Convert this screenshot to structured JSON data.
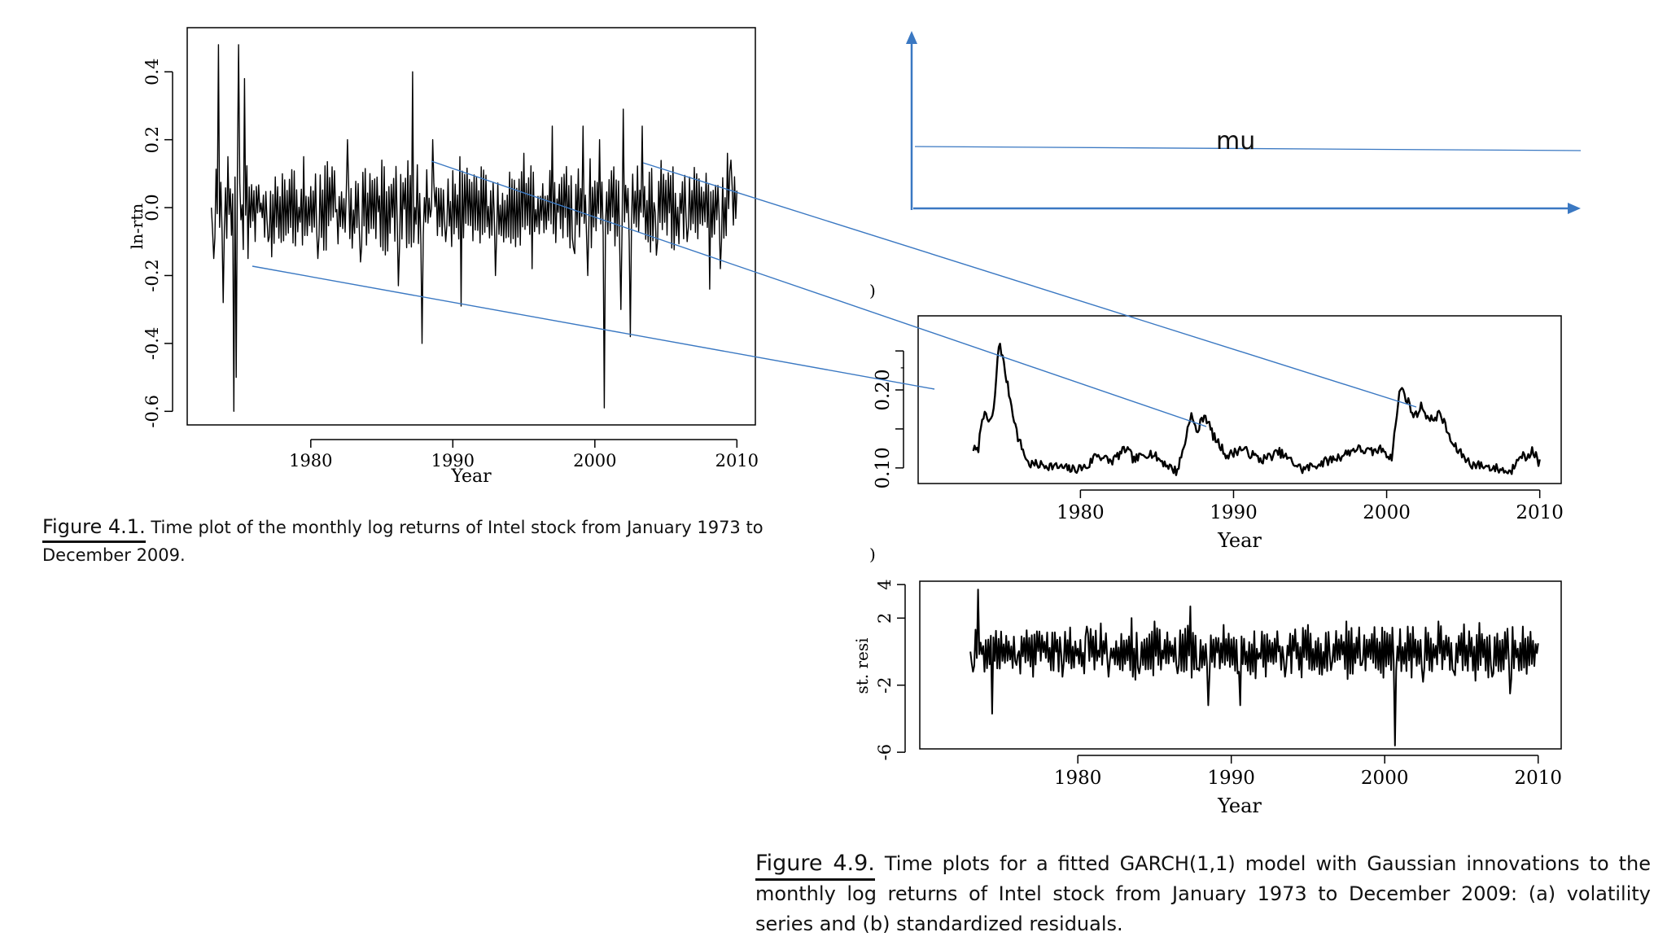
{
  "annotation": {
    "mu_label": "mu",
    "stray_marks": [
      ")",
      ")",
      "-"
    ]
  },
  "captions": {
    "fig41_label": "Figure 4.1.",
    "fig41_text": " Time plot of the monthly log returns of Intel stock from January 1973 to December 2009.",
    "fig49_label": "Figure 4.9.",
    "fig49_text": " Time plots for a fitted GARCH(1,1) model with Gaussian innovations to the monthly log returns of Intel stock from January 1973 to December 2009: (a) volatility series and (b) standardized residuals."
  },
  "colors": {
    "annotation": "#3a78c2",
    "line": "#000000"
  },
  "chart_data": [
    {
      "id": "log_returns",
      "type": "line",
      "title": "",
      "xlabel": "Year",
      "ylabel": "ln-rtn",
      "xlim": [
        1971.3,
        2011.3
      ],
      "ylim": [
        -0.64,
        0.53
      ],
      "xticks": [
        1980,
        1990,
        2000,
        2010
      ],
      "yticks": [
        -0.6,
        -0.4,
        -0.2,
        0.0,
        0.2,
        0.4
      ],
      "ytick_labels": [
        "-0.6",
        "-0.4",
        "-0.2",
        "0.0",
        "0.2",
        "0.4"
      ],
      "series": [
        {
          "name": "ln-rtn",
          "x_start": 1973.0,
          "x_end": 2010.0,
          "key_points": [
            [
              1973.0,
              0.0
            ],
            [
              1973.15,
              -0.15
            ],
            [
              1973.5,
              0.48
            ],
            [
              1973.85,
              -0.28
            ],
            [
              1974.2,
              0.15
            ],
            [
              1974.6,
              -0.6
            ],
            [
              1974.75,
              -0.5
            ],
            [
              1974.95,
              0.48
            ],
            [
              1975.3,
              0.38
            ],
            [
              1975.6,
              -0.15
            ],
            [
              1976.0,
              0.05
            ],
            [
              1977.0,
              -0.1
            ],
            [
              1978.0,
              0.1
            ],
            [
              1979.5,
              0.15
            ],
            [
              1980.5,
              -0.15
            ],
            [
              1981.5,
              0.12
            ],
            [
              1982.6,
              0.2
            ],
            [
              1983.5,
              -0.16
            ],
            [
              1985.0,
              0.14
            ],
            [
              1986.2,
              -0.23
            ],
            [
              1987.2,
              0.4
            ],
            [
              1987.8,
              -0.4
            ],
            [
              1988.6,
              0.2
            ],
            [
              1989.5,
              -0.1
            ],
            [
              1990.5,
              0.15
            ],
            [
              1990.6,
              -0.29
            ],
            [
              1992.0,
              0.12
            ],
            [
              1993.0,
              -0.2
            ],
            [
              1995.0,
              0.16
            ],
            [
              1995.6,
              -0.18
            ],
            [
              1997.0,
              0.24
            ],
            [
              1998.5,
              -0.12
            ],
            [
              1999.2,
              0.24
            ],
            [
              1999.5,
              -0.2
            ],
            [
              2000.3,
              0.2
            ],
            [
              2000.7,
              -0.59
            ],
            [
              2001.3,
              0.12
            ],
            [
              2001.8,
              -0.3
            ],
            [
              2002.0,
              0.29
            ],
            [
              2002.5,
              -0.38
            ],
            [
              2003.3,
              0.24
            ],
            [
              2004.3,
              -0.14
            ],
            [
              2005.5,
              0.12
            ],
            [
              2006.5,
              -0.1
            ],
            [
              2007.5,
              0.06
            ],
            [
              2008.1,
              -0.24
            ],
            [
              2008.8,
              -0.18
            ],
            [
              2009.3,
              0.16
            ],
            [
              2009.6,
              0.14
            ],
            [
              2010.0,
              0.05
            ]
          ]
        }
      ]
    },
    {
      "id": "volatility",
      "type": "line",
      "title": "",
      "xlabel": "Year",
      "ylabel": "",
      "xlim": [
        1969.4,
        2011.4
      ],
      "ylim": [
        0.08,
        0.295
      ],
      "xticks": [
        1980,
        1990,
        2000,
        2010
      ],
      "yticks": [
        0.1,
        0.15,
        0.2,
        0.25
      ],
      "ytick_labels": [
        "0.10",
        "",
        "0.20",
        ""
      ],
      "series": [
        {
          "name": "volatility",
          "x_start": 1973.0,
          "x_end": 2010.0,
          "key_points": [
            [
              1973.0,
              0.125
            ],
            [
              1973.3,
              0.12
            ],
            [
              1973.6,
              0.17
            ],
            [
              1974.0,
              0.16
            ],
            [
              1974.3,
              0.165
            ],
            [
              1974.7,
              0.265
            ],
            [
              1975.2,
              0.21
            ],
            [
              1975.9,
              0.14
            ],
            [
              1976.6,
              0.105
            ],
            [
              1978.0,
              0.103
            ],
            [
              1979.5,
              0.098
            ],
            [
              1980.5,
              0.102
            ],
            [
              1981.0,
              0.118
            ],
            [
              1982.0,
              0.108
            ],
            [
              1983.0,
              0.125
            ],
            [
              1983.5,
              0.11
            ],
            [
              1984.5,
              0.12
            ],
            [
              1986.3,
              0.095
            ],
            [
              1986.8,
              0.13
            ],
            [
              1987.2,
              0.17
            ],
            [
              1987.6,
              0.145
            ],
            [
              1988.1,
              0.17
            ],
            [
              1988.7,
              0.14
            ],
            [
              1989.6,
              0.115
            ],
            [
              1990.5,
              0.125
            ],
            [
              1991.8,
              0.11
            ],
            [
              1993.0,
              0.12
            ],
            [
              1994.5,
              0.098
            ],
            [
              1996.0,
              0.108
            ],
            [
              1997.0,
              0.115
            ],
            [
              1998.0,
              0.125
            ],
            [
              1999.0,
              0.12
            ],
            [
              1999.8,
              0.125
            ],
            [
              2000.3,
              0.11
            ],
            [
              2000.9,
              0.205
            ],
            [
              2001.4,
              0.185
            ],
            [
              2001.8,
              0.165
            ],
            [
              2002.3,
              0.18
            ],
            [
              2002.8,
              0.16
            ],
            [
              2003.5,
              0.17
            ],
            [
              2004.3,
              0.13
            ],
            [
              2005.5,
              0.105
            ],
            [
              2006.5,
              0.102
            ],
            [
              2007.5,
              0.098
            ],
            [
              2008.1,
              0.094
            ],
            [
              2008.7,
              0.12
            ],
            [
              2009.2,
              0.11
            ],
            [
              2009.5,
              0.125
            ],
            [
              2010.0,
              0.105
            ]
          ]
        }
      ]
    },
    {
      "id": "std_residuals",
      "type": "line",
      "title": "",
      "xlabel": "Year",
      "ylabel": "st. resi",
      "xlim": [
        1969.7,
        2011.5
      ],
      "ylim": [
        -5.8,
        4.2
      ],
      "xticks": [
        1980,
        1990,
        2000,
        2010
      ],
      "yticks": [
        -6,
        -2,
        2,
        4
      ],
      "ytick_labels": [
        "-6",
        "-2",
        "2",
        "4"
      ],
      "series": [
        {
          "name": "st. resi",
          "x_start": 1973.0,
          "x_end": 2010.0,
          "key_points": [
            [
              1973.0,
              0.0
            ],
            [
              1973.2,
              -1.2
            ],
            [
              1973.5,
              3.7
            ],
            [
              1973.9,
              -1.2
            ],
            [
              1974.4,
              -3.7
            ],
            [
              1975.0,
              1.2
            ],
            [
              1976.0,
              -0.8
            ],
            [
              1977.5,
              1.2
            ],
            [
              1979.0,
              -1.5
            ],
            [
              1980.6,
              1.5
            ],
            [
              1982.0,
              -1.5
            ],
            [
              1983.5,
              2.0
            ],
            [
              1984.0,
              -1.3
            ],
            [
              1985.0,
              1.8
            ],
            [
              1986.5,
              -1.3
            ],
            [
              1987.3,
              2.7
            ],
            [
              1987.8,
              -1.0
            ],
            [
              1988.5,
              -3.2
            ],
            [
              1989.5,
              1.6
            ],
            [
              1990.5,
              -1.2
            ],
            [
              1990.6,
              -3.2
            ],
            [
              1992.0,
              1.2
            ],
            [
              1993.5,
              -1.5
            ],
            [
              1995.0,
              1.6
            ],
            [
              1996.5,
              -1.1
            ],
            [
              1997.5,
              1.8
            ],
            [
              1998.5,
              -0.8
            ],
            [
              2000.0,
              1.2
            ],
            [
              2000.7,
              -5.6
            ],
            [
              2001.5,
              1.5
            ],
            [
              2002.5,
              -1.8
            ],
            [
              2003.5,
              1.8
            ],
            [
              2004.5,
              -1.2
            ],
            [
              2006.0,
              1.0
            ],
            [
              2007.0,
              -1.5
            ],
            [
              2008.2,
              -2.5
            ],
            [
              2009.0,
              1.5
            ],
            [
              2010.0,
              0.5
            ]
          ]
        }
      ]
    }
  ]
}
